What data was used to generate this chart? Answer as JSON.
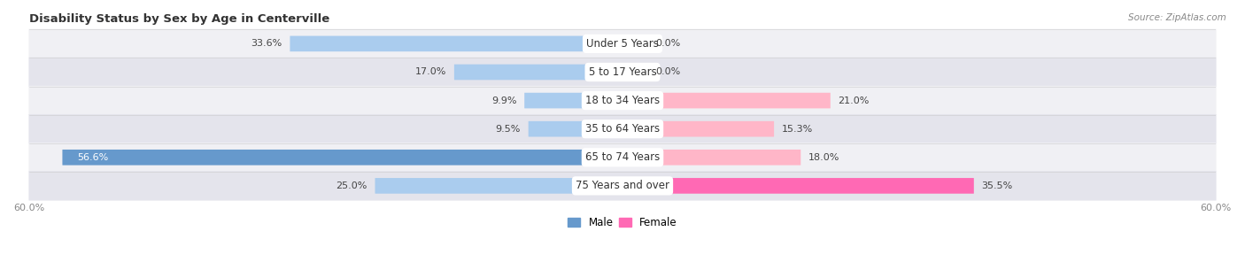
{
  "title": "Disability Status by Sex by Age in Centerville",
  "source": "Source: ZipAtlas.com",
  "categories": [
    "Under 5 Years",
    "5 to 17 Years",
    "18 to 34 Years",
    "35 to 64 Years",
    "65 to 74 Years",
    "75 Years and over"
  ],
  "male_values": [
    33.6,
    17.0,
    9.9,
    9.5,
    56.6,
    25.0
  ],
  "female_values": [
    0.0,
    0.0,
    21.0,
    15.3,
    18.0,
    35.5
  ],
  "male_color_dark": "#6699CC",
  "male_color_light": "#AACCEE",
  "female_color_dark": "#FF69B4",
  "female_color_light": "#FFB6C8",
  "row_color_odd": "#F0F0F4",
  "row_color_even": "#E4E4EC",
  "max_val": 60.0,
  "title_fontsize": 9.5,
  "label_fontsize": 8.5,
  "value_fontsize": 8,
  "tick_fontsize": 8,
  "legend_fontsize": 8.5
}
